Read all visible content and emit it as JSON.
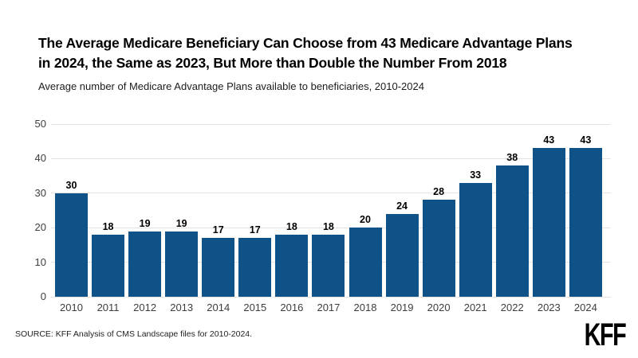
{
  "header": {
    "title_line1": "The Average Medicare Beneficiary Can Choose from 43 Medicare Advantage Plans",
    "title_line2": "in 2024, the Same as 2023, But More than Double the Number From 2018",
    "subtitle": "Average number of Medicare Advantage Plans available to beneficiaries, 2010-2024"
  },
  "chart_data": {
    "type": "bar",
    "title": "The Average Medicare Beneficiary Can Choose from 43 Medicare Advantage Plans in 2024, the Same as 2023, But More than Double the Number From 2018",
    "subtitle": "Average number of Medicare Advantage Plans available to beneficiaries, 2010-2024",
    "categories": [
      "2010",
      "2011",
      "2012",
      "2013",
      "2014",
      "2015",
      "2016",
      "2017",
      "2018",
      "2019",
      "2020",
      "2021",
      "2022",
      "2023",
      "2024"
    ],
    "values": [
      30,
      18,
      19,
      19,
      17,
      17,
      18,
      18,
      20,
      24,
      28,
      33,
      38,
      43,
      43
    ],
    "xlabel": "",
    "ylabel": "",
    "ylim": [
      0,
      50
    ],
    "yticks": [
      0,
      10,
      20,
      30,
      40,
      50
    ],
    "grid": "horizontal-light",
    "legend": "none",
    "bar_color": "#0e5287",
    "value_labels_shown": true
  },
  "colors": {
    "bar": "#0e5287",
    "gridline": "#e3e3e3",
    "axis_text": "#3d3d3d",
    "title_text": "#000000",
    "background": "#ffffff"
  },
  "footer": {
    "source": "SOURCE: KFF Analysis of CMS Landscape files for 2010-2024.",
    "logo_text": "KFF"
  }
}
